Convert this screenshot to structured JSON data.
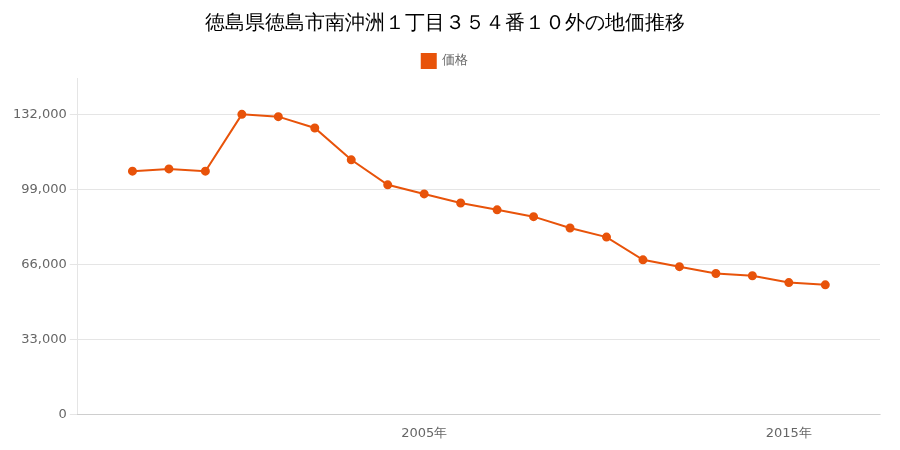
{
  "chart_data": {
    "type": "line",
    "title": "徳島県徳島市南沖洲１丁目３５４番１０外の地価推移",
    "x": [
      1997,
      1998,
      1999,
      2000,
      2001,
      2002,
      2003,
      2004,
      2005,
      2006,
      2007,
      2008,
      2009,
      2010,
      2011,
      2012,
      2013,
      2014,
      2015,
      2016
    ],
    "series": [
      {
        "name": "価格",
        "color": "#E8530A",
        "values": [
          107000,
          108000,
          107000,
          132000,
          131000,
          126000,
          112000,
          101000,
          97000,
          93000,
          90000,
          87000,
          82000,
          78000,
          68000,
          65000,
          62000,
          61000,
          58000,
          57000
        ]
      }
    ],
    "xlim": [
      1995.5,
      2017.5
    ],
    "xticks": [
      {
        "value": 2005,
        "label": "2005年"
      },
      {
        "value": 2015,
        "label": "2015年"
      }
    ],
    "ylim": [
      0,
      148000
    ],
    "yticks": [
      0,
      {
        "value": 33000,
        "label": "33,000"
      },
      {
        "value": 66000,
        "label": "66,000"
      },
      {
        "value": 99000,
        "label": "99,000"
      },
      {
        "value": 132000,
        "label": "132,000"
      }
    ],
    "grid": "y",
    "legend": "top",
    "marker": "circle"
  }
}
